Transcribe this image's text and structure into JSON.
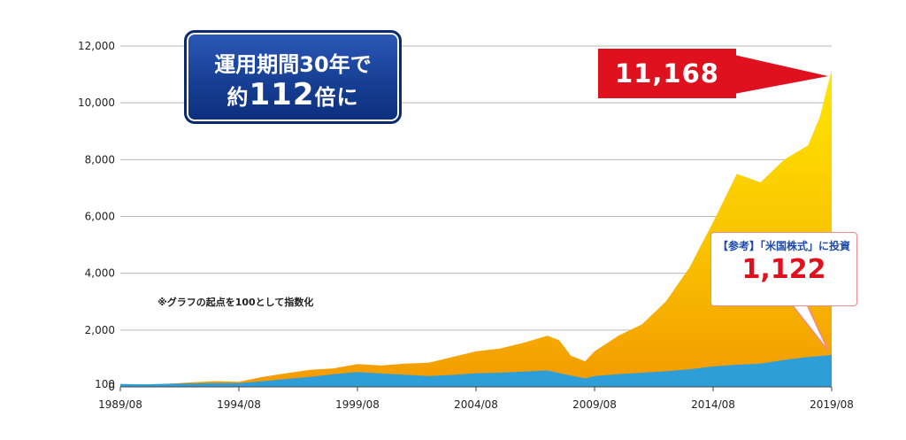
{
  "chart_data": {
    "type": "area",
    "x_tick_labels": [
      "1989/08",
      "1994/08",
      "1999/08",
      "2004/08",
      "2009/08",
      "2014/08",
      "2019/08"
    ],
    "y_tick_labels": [
      "0",
      "100",
      "2,000",
      "4,000",
      "6,000",
      "8,000",
      "10,000",
      "12,000"
    ],
    "y_ticks": [
      0,
      100,
      2000,
      4000,
      6000,
      8000,
      10000,
      12000
    ],
    "ylim": [
      0,
      12000
    ],
    "grid": true,
    "note": "※グラフの起点を100として指数化",
    "series": [
      {
        "color": "#f5b800",
        "x": [
          1989.6,
          1990.6,
          1991.6,
          1992.6,
          1993.6,
          1994.6,
          1995.6,
          1996.6,
          1997.6,
          1998.6,
          1999.6,
          2000.6,
          2001.6,
          2002.6,
          2003.6,
          2004.6,
          2005.6,
          2006.6,
          2007.6,
          2008.1,
          2008.6,
          2009.2,
          2009.6,
          2010.6,
          2011.6,
          2012.6,
          2013.6,
          2014.6,
          2015.6,
          2016.6,
          2017.6,
          2018.6,
          2019.1,
          2019.6
        ],
        "values": [
          100,
          80,
          110,
          160,
          200,
          180,
          350,
          480,
          600,
          650,
          800,
          750,
          820,
          850,
          1050,
          1250,
          1350,
          1550,
          1800,
          1650,
          1100,
          900,
          1250,
          1800,
          2200,
          3000,
          4200,
          5800,
          7500,
          7200,
          8000,
          8500,
          9500,
          11168
        ]
      },
      {
        "color": "#2e9ed8",
        "x": [
          1989.6,
          1990.6,
          1991.6,
          1992.6,
          1993.6,
          1994.6,
          1995.6,
          1996.6,
          1997.6,
          1998.6,
          1999.6,
          2000.6,
          2001.6,
          2002.6,
          2003.6,
          2004.6,
          2005.6,
          2006.6,
          2007.6,
          2008.6,
          2009.2,
          2009.6,
          2010.6,
          2011.6,
          2012.6,
          2013.6,
          2014.6,
          2015.6,
          2016.6,
          2017.6,
          2018.6,
          2019.6
        ],
        "values": [
          100,
          90,
          110,
          120,
          130,
          130,
          200,
          280,
          350,
          450,
          520,
          470,
          430,
          380,
          420,
          480,
          500,
          540,
          580,
          400,
          300,
          380,
          450,
          500,
          550,
          620,
          720,
          780,
          820,
          950,
          1050,
          1122
        ]
      }
    ]
  },
  "callouts": {
    "headline_line1": "運用期間30年で",
    "headline_prefix": "約",
    "headline_number": "112",
    "headline_suffix": "倍に",
    "main_value": "11,168",
    "reference_label": "【参考】「米国株式」に投資",
    "reference_value": "1,122"
  }
}
